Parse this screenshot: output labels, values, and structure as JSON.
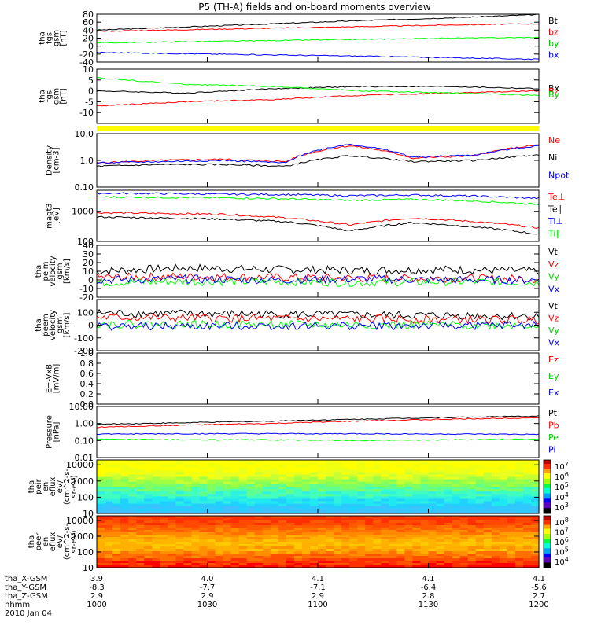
{
  "title": "P5 (TH-A) fields and on-board moments overview",
  "chart_data": {
    "type": "line",
    "title": "P5 (TH-A) fields and on-board moments overview",
    "panels": [
      {
        "id": "fgs",
        "ylabel": [
          "tha",
          "fgs",
          "gsm",
          "[nT]"
        ],
        "ylim": [
          -40,
          80
        ],
        "yticks": [
          -40,
          -20,
          0,
          20,
          40,
          60,
          80
        ],
        "scale": "linear",
        "legend": [
          "Bt",
          "bz",
          "by",
          "bx"
        ],
        "series": [
          {
            "name": "Bt",
            "color": "#000000",
            "values": [
              40,
              48,
              56,
              64,
              71,
              79
            ]
          },
          {
            "name": "bz",
            "color": "#ff0000",
            "values": [
              37,
              41,
              45,
              49,
              53,
              56
            ]
          },
          {
            "name": "by",
            "color": "#00ff00",
            "values": [
              8,
              11,
              14,
              17,
              20,
              22
            ]
          },
          {
            "name": "bx",
            "color": "#0000ff",
            "values": [
              -16,
              -19,
              -22,
              -25,
              -29,
              -33
            ]
          }
        ]
      },
      {
        "id": "fgs_dp",
        "ylabel": [
          "tha",
          "fgs",
          "gsm",
          "[nT]"
        ],
        "ylim": [
          -15,
          10
        ],
        "yticks": [
          -10,
          -5,
          0,
          5,
          10
        ],
        "scale": "linear",
        "legend": [
          "Bx",
          "Bz",
          "By"
        ],
        "series": [
          {
            "name": "Bx",
            "color": "#000000",
            "values": [
              0,
              -1,
              1,
              2,
              2,
              1
            ]
          },
          {
            "name": "Bz",
            "color": "#ff0000",
            "values": [
              -7,
              -5,
              -4,
              -2,
              -1,
              0
            ]
          },
          {
            "name": "By",
            "color": "#00ff00",
            "values": [
              6,
              3,
              2,
              0,
              -1,
              -2
            ]
          }
        ]
      },
      {
        "id": "density",
        "ylabel": [
          "Density",
          "[cm-3]"
        ],
        "ylim": [
          0.1,
          10
        ],
        "yticks": [
          0.1,
          1.0,
          10.0
        ],
        "scale": "log",
        "legend": [
          "Ne",
          "Ni",
          "Npot"
        ],
        "series": [
          {
            "name": "Ne",
            "color": "#ff0000",
            "values": [
              0.8,
              1.0,
              1.1,
              0.9,
              3.5,
              1.2,
              1.5,
              3.8
            ]
          },
          {
            "name": "Ni",
            "color": "#000000",
            "values": [
              0.6,
              0.7,
              0.7,
              0.6,
              1.5,
              0.9,
              1.0,
              1.6
            ]
          },
          {
            "name": "Npot",
            "color": "#0000ff",
            "values": [
              0.8,
              0.9,
              1.0,
              0.8,
              4.0,
              1.3,
              1.6,
              3.5
            ]
          }
        ]
      },
      {
        "id": "temperature",
        "ylabel": [
          "magt3",
          "[eV]"
        ],
        "ylim": [
          100,
          5000
        ],
        "yticks": [
          100,
          1000
        ],
        "scale": "log",
        "legend": [
          "Te⊥",
          "Te∥",
          "Ti⊥",
          "Ti∥"
        ],
        "series": [
          {
            "name": "Te⊥",
            "color": "#ff0000",
            "values": [
              900,
              850,
              800,
              600,
              350,
              600,
              450,
              280
            ]
          },
          {
            "name": "Te∥",
            "color": "#000000",
            "values": [
              650,
              600,
              550,
              450,
              220,
              420,
              300,
              170
            ]
          },
          {
            "name": "Ti⊥",
            "color": "#0000ff",
            "values": [
              4000,
              3900,
              3700,
              3600,
              3300,
              3500,
              3200,
              2700
            ]
          },
          {
            "name": "Ti∥",
            "color": "#00ff00",
            "values": [
              3000,
              2900,
              2800,
              2600,
              2300,
              2500,
              2200,
              1700
            ]
          }
        ]
      },
      {
        "id": "peim_velocity",
        "ylabel": [
          "tha",
          "peim",
          "velocity",
          "gsm",
          "[km/s]"
        ],
        "ylim": [
          -20,
          40
        ],
        "yticks": [
          -20,
          -10,
          0,
          10,
          20,
          30,
          40
        ],
        "scale": "linear",
        "legend": [
          "Vt",
          "Vz",
          "Vy",
          "Vx"
        ],
        "series": [
          {
            "name": "Vt",
            "color": "#000000",
            "values": [
              10,
              14,
              12,
              11,
              12,
              10
            ]
          },
          {
            "name": "Vz",
            "color": "#ff0000",
            "values": [
              3,
              4,
              3,
              2,
              2,
              1
            ]
          },
          {
            "name": "Vy",
            "color": "#00ff00",
            "values": [
              -3,
              -2,
              -2,
              -3,
              -2,
              -3
            ]
          },
          {
            "name": "Vx",
            "color": "#0000ff",
            "values": [
              0,
              1,
              0,
              1,
              0,
              0
            ]
          }
        ]
      },
      {
        "id": "peem_velocity",
        "ylabel": [
          "tha",
          "peem",
          "velocity",
          "gsm",
          "[km/s]"
        ],
        "ylim": [
          -200,
          200
        ],
        "yticks": [
          -200,
          -100,
          0,
          100
        ],
        "scale": "linear",
        "legend": [
          "Vt",
          "Vz",
          "Vy",
          "Vx"
        ],
        "series": [
          {
            "name": "Vt",
            "color": "#000000",
            "values": [
              95,
              90,
              85,
              80,
              75,
              70
            ]
          },
          {
            "name": "Vz",
            "color": "#ff0000",
            "values": [
              60,
              55,
              50,
              48,
              45,
              40
            ]
          },
          {
            "name": "Vy",
            "color": "#00ff00",
            "values": [
              10,
              5,
              5,
              0,
              0,
              0
            ]
          },
          {
            "name": "Vx",
            "color": "#0000ff",
            "values": [
              -10,
              -10,
              -5,
              -5,
              -5,
              0
            ]
          }
        ]
      },
      {
        "id": "efield",
        "ylabel": [
          "E=-VxB",
          "[mV/m]"
        ],
        "ylim": [
          0.0,
          1.0
        ],
        "yticks": [
          0.0,
          0.2,
          0.4,
          0.6,
          0.8,
          1.0
        ],
        "scale": "linear",
        "legend": [
          "Ez",
          "Ey",
          "Ex"
        ],
        "series": []
      },
      {
        "id": "pressure",
        "ylabel": [
          "Pressure",
          "[nPa]"
        ],
        "ylim": [
          0.01,
          10
        ],
        "yticks": [
          0.01,
          0.1,
          1.0,
          10.0
        ],
        "scale": "log",
        "legend": [
          "Pt",
          "Pb",
          "Pe",
          "Pi"
        ],
        "series": [
          {
            "name": "Pt",
            "color": "#000000",
            "values": [
              0.9,
              1.1,
              1.4,
              1.8,
              2.3,
              2.7
            ]
          },
          {
            "name": "Pb",
            "color": "#ff0000",
            "values": [
              0.6,
              0.8,
              1.0,
              1.4,
              1.8,
              2.2
            ]
          },
          {
            "name": "Pe",
            "color": "#0000ff",
            "values": [
              0.24,
              0.25,
              0.25,
              0.25,
              0.24,
              0.23
            ]
          },
          {
            "name": "Pi",
            "color": "#00ff00",
            "values": [
              0.12,
              0.11,
              0.11,
              0.1,
              0.11,
              0.12
            ]
          }
        ]
      },
      {
        "id": "peir_spec",
        "type": "heatmap",
        "ylabel": [
          "tha",
          "peir",
          "en",
          "eflux",
          "eV/",
          "(cm^2-s-",
          "sr-eV)"
        ],
        "ylim": [
          10,
          20000
        ],
        "yticks": [
          10,
          100,
          1000,
          10000
        ],
        "scale": "log",
        "colorbar": {
          "ticks": [
            "10",
            "10",
            "10",
            "10",
            "10"
          ],
          "exponents": [
            "7",
            "6",
            "5",
            "4",
            "3"
          ]
        }
      },
      {
        "id": "peer_spec",
        "type": "heatmap",
        "ylabel": [
          "tha",
          "peer",
          "en",
          "eflux",
          "eV/",
          "(cm^2-s-",
          "sr-eV)"
        ],
        "ylim": [
          10,
          20000
        ],
        "yticks": [
          10,
          100,
          1000,
          10000
        ],
        "scale": "log",
        "colorbar": {
          "ticks": [
            "10",
            "10",
            "10",
            "10",
            "10"
          ],
          "exponents": [
            "8",
            "7",
            "6",
            "5",
            "4"
          ]
        }
      }
    ],
    "x_axis": {
      "row_labels": [
        "tha_X-GSM",
        "tha_Y-GSM",
        "tha_Z-GSM",
        "hhmm",
        "2010 Jan 04"
      ],
      "columns": [
        {
          "x": "3.9",
          "y": "-8.3",
          "z": "2.9",
          "t": "1000"
        },
        {
          "x": "4.0",
          "y": "-7.7",
          "z": "2.9",
          "t": "1030"
        },
        {
          "x": "4.1",
          "y": "-7.1",
          "z": "2.9",
          "t": "1100"
        },
        {
          "x": "4.1",
          "y": "-6.4",
          "z": "2.8",
          "t": "1130"
        },
        {
          "x": "4.1",
          "y": "-5.6",
          "z": "2.7",
          "t": "1200"
        }
      ]
    }
  }
}
